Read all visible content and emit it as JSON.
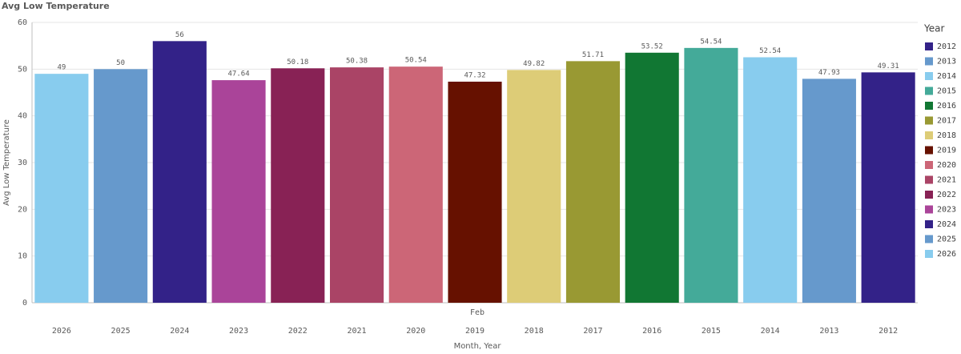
{
  "chart_data": {
    "type": "bar",
    "title": "Avg Low Temperature",
    "x_label": "Month, Year",
    "y_label": "Avg Low Temperature",
    "group_label": "Feb",
    "categories": [
      "2026",
      "2025",
      "2024",
      "2023",
      "2022",
      "2021",
      "2020",
      "2019",
      "2018",
      "2017",
      "2016",
      "2015",
      "2014",
      "2013",
      "2012"
    ],
    "values": [
      49,
      50,
      56,
      47.64,
      50.18,
      50.38,
      50.54,
      47.32,
      49.82,
      51.71,
      53.52,
      54.54,
      52.54,
      47.93,
      49.31
    ],
    "ylim": [
      0,
      60
    ],
    "yticks": [
      0,
      10,
      20,
      30,
      40,
      50,
      60
    ],
    "grid": true,
    "legend": {
      "title": "Year",
      "position": "right",
      "items": [
        {
          "name": "2012",
          "color": "#332288"
        },
        {
          "name": "2013",
          "color": "#6699cc"
        },
        {
          "name": "2014",
          "color": "#88ccee"
        },
        {
          "name": "2015",
          "color": "#44aa99"
        },
        {
          "name": "2016",
          "color": "#117733"
        },
        {
          "name": "2017",
          "color": "#999933"
        },
        {
          "name": "2018",
          "color": "#ddcc77"
        },
        {
          "name": "2019",
          "color": "#661100"
        },
        {
          "name": "2020",
          "color": "#cc6677"
        },
        {
          "name": "2021",
          "color": "#aa4466"
        },
        {
          "name": "2022",
          "color": "#882255"
        },
        {
          "name": "2023",
          "color": "#aa4499"
        },
        {
          "name": "2024",
          "color": "#332288"
        },
        {
          "name": "2025",
          "color": "#6699cc"
        },
        {
          "name": "2026",
          "color": "#88ccee"
        }
      ]
    }
  }
}
